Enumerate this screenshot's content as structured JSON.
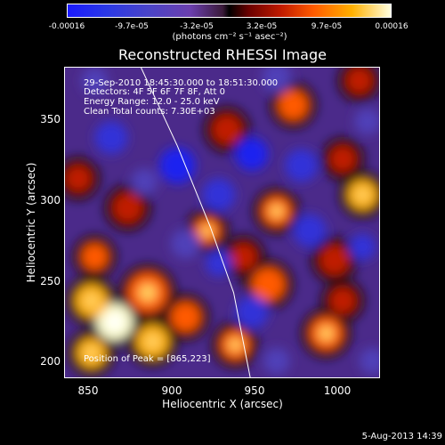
{
  "colorbar": {
    "ticks": [
      "-0.00016",
      "-9.7e-05",
      "-3.2e-05",
      "3.2e-05",
      "9.7e-05",
      "0.00016"
    ],
    "units": "(photons cm⁻² s⁻¹ asec⁻²)",
    "colors": [
      "#1a1aff",
      "#6b3fae",
      "#000000",
      "#c01a00",
      "#ff5a00",
      "#ffffe0"
    ]
  },
  "chart_data": {
    "type": "heatmap",
    "title": "Reconstructed RHESSI Image",
    "xlabel": "Heliocentric X (arcsec)",
    "ylabel": "Heliocentric Y (arcsec)",
    "xlim": [
      832,
      1022
    ],
    "ylim": [
      188,
      378
    ],
    "xticks": [
      "850",
      "900",
      "950",
      "1000"
    ],
    "yticks": [
      "200",
      "250",
      "300",
      "350"
    ],
    "clim": [
      -0.00016,
      0.00016
    ],
    "info_lines": [
      "29-Sep-2010 18:45:30.000 to 18:51:30.000",
      "Detectors: 4F 5F 6F 7F 8F, Att 0",
      "Energy Range: 12.0 - 25.0 keV",
      "Clean    Total counts: 7.30E+03"
    ],
    "peak_label": "Position of Peak = [865,223]",
    "peak": [
      865,
      223
    ],
    "limb": [
      [
        878,
        378
      ],
      [
        900,
        330
      ],
      [
        920,
        280
      ],
      [
        934,
        240
      ],
      [
        944,
        188
      ]
    ],
    "blobs": [
      {
        "x": 862,
        "y": 222,
        "v": 1.0,
        "r": 11
      },
      {
        "x": 848,
        "y": 235,
        "v": 0.7,
        "r": 10
      },
      {
        "x": 848,
        "y": 203,
        "v": 0.75,
        "r": 9
      },
      {
        "x": 882,
        "y": 240,
        "v": 0.65,
        "r": 12
      },
      {
        "x": 885,
        "y": 210,
        "v": 0.8,
        "r": 10
      },
      {
        "x": 905,
        "y": 225,
        "v": 0.55,
        "r": 9
      },
      {
        "x": 935,
        "y": 208,
        "v": 0.6,
        "r": 9
      },
      {
        "x": 955,
        "y": 245,
        "v": 0.55,
        "r": 10
      },
      {
        "x": 990,
        "y": 215,
        "v": 0.6,
        "r": 10
      },
      {
        "x": 995,
        "y": 260,
        "v": 0.5,
        "r": 9
      },
      {
        "x": 1012,
        "y": 300,
        "v": 0.7,
        "r": 9
      },
      {
        "x": 918,
        "y": 278,
        "v": 0.6,
        "r": 8
      },
      {
        "x": 960,
        "y": 290,
        "v": 0.65,
        "r": 9
      },
      {
        "x": 1000,
        "y": 322,
        "v": 0.5,
        "r": 8
      },
      {
        "x": 870,
        "y": 292,
        "v": 0.45,
        "r": 9
      },
      {
        "x": 850,
        "y": 262,
        "v": 0.55,
        "r": 8
      },
      {
        "x": 840,
        "y": 310,
        "v": 0.4,
        "r": 8
      },
      {
        "x": 930,
        "y": 340,
        "v": 0.45,
        "r": 9
      },
      {
        "x": 970,
        "y": 355,
        "v": 0.55,
        "r": 9
      },
      {
        "x": 1010,
        "y": 370,
        "v": 0.5,
        "r": 8
      },
      {
        "x": 1000,
        "y": 235,
        "v": 0.45,
        "r": 8
      },
      {
        "x": 940,
        "y": 262,
        "v": 0.4,
        "r": 8
      },
      {
        "x": 860,
        "y": 335,
        "v": -0.55,
        "r": 10
      },
      {
        "x": 900,
        "y": 318,
        "v": -0.75,
        "r": 11
      },
      {
        "x": 925,
        "y": 300,
        "v": -0.65,
        "r": 10
      },
      {
        "x": 945,
        "y": 325,
        "v": -0.7,
        "r": 10
      },
      {
        "x": 975,
        "y": 318,
        "v": -0.6,
        "r": 10
      },
      {
        "x": 960,
        "y": 372,
        "v": -0.5,
        "r": 9
      },
      {
        "x": 1012,
        "y": 268,
        "v": -0.55,
        "r": 8
      },
      {
        "x": 980,
        "y": 278,
        "v": -0.6,
        "r": 10
      },
      {
        "x": 925,
        "y": 258,
        "v": -0.55,
        "r": 8
      },
      {
        "x": 945,
        "y": 228,
        "v": -0.6,
        "r": 10
      },
      {
        "x": 905,
        "y": 270,
        "v": -0.5,
        "r": 9
      },
      {
        "x": 880,
        "y": 308,
        "v": -0.5,
        "r": 8
      },
      {
        "x": 1018,
        "y": 198,
        "v": -0.5,
        "r": 8
      },
      {
        "x": 960,
        "y": 198,
        "v": -0.45,
        "r": 8
      },
      {
        "x": 850,
        "y": 370,
        "v": -0.5,
        "r": 8
      },
      {
        "x": 1015,
        "y": 345,
        "v": -0.45,
        "r": 8
      }
    ]
  },
  "footer": {
    "timestamp": "5-Aug-2013 14:39"
  }
}
